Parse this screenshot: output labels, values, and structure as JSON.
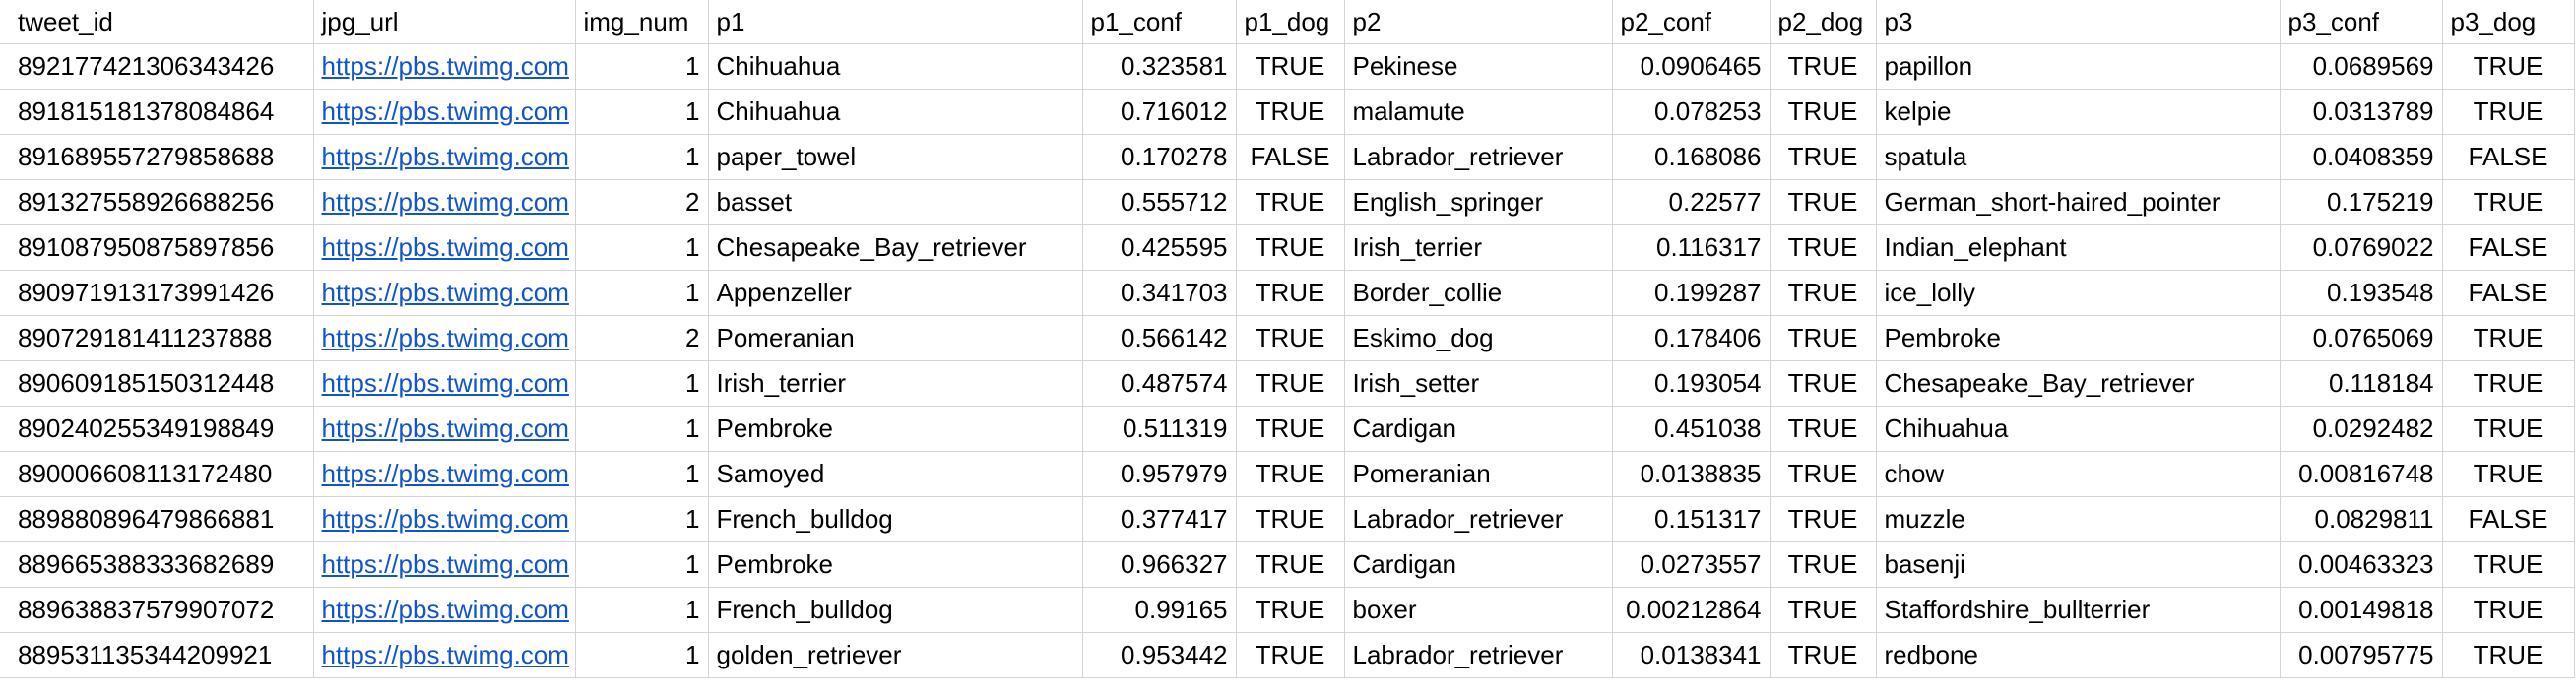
{
  "columns": [
    "tweet_id",
    "jpg_url",
    "img_num",
    "p1",
    "p1_conf",
    "p1_dog",
    "p2",
    "p2_conf",
    "p2_dog",
    "p3",
    "p3_conf",
    "p3_dog"
  ],
  "rows": [
    [
      "892177421306343426",
      "https://pbs.twimg.com",
      "1",
      "Chihuahua",
      "0.323581",
      "TRUE",
      "Pekinese",
      "0.0906465",
      "TRUE",
      "papillon",
      "0.0689569",
      "TRUE"
    ],
    [
      "891815181378084864",
      "https://pbs.twimg.com",
      "1",
      "Chihuahua",
      "0.716012",
      "TRUE",
      "malamute",
      "0.078253",
      "TRUE",
      "kelpie",
      "0.0313789",
      "TRUE"
    ],
    [
      "891689557279858688",
      "https://pbs.twimg.com",
      "1",
      "paper_towel",
      "0.170278",
      "FALSE",
      "Labrador_retriever",
      "0.168086",
      "TRUE",
      "spatula",
      "0.0408359",
      "FALSE"
    ],
    [
      "891327558926688256",
      "https://pbs.twimg.com",
      "2",
      "basset",
      "0.555712",
      "TRUE",
      "English_springer",
      "0.22577",
      "TRUE",
      "German_short-haired_pointer",
      "0.175219",
      "TRUE"
    ],
    [
      "891087950875897856",
      "https://pbs.twimg.com",
      "1",
      "Chesapeake_Bay_retriever",
      "0.425595",
      "TRUE",
      "Irish_terrier",
      "0.116317",
      "TRUE",
      "Indian_elephant",
      "0.0769022",
      "FALSE"
    ],
    [
      "890971913173991426",
      "https://pbs.twimg.com",
      "1",
      "Appenzeller",
      "0.341703",
      "TRUE",
      "Border_collie",
      "0.199287",
      "TRUE",
      "ice_lolly",
      "0.193548",
      "FALSE"
    ],
    [
      "890729181411237888",
      "https://pbs.twimg.com",
      "2",
      "Pomeranian",
      "0.566142",
      "TRUE",
      "Eskimo_dog",
      "0.178406",
      "TRUE",
      "Pembroke",
      "0.0765069",
      "TRUE"
    ],
    [
      "890609185150312448",
      "https://pbs.twimg.com",
      "1",
      "Irish_terrier",
      "0.487574",
      "TRUE",
      "Irish_setter",
      "0.193054",
      "TRUE",
      "Chesapeake_Bay_retriever",
      "0.118184",
      "TRUE"
    ],
    [
      "890240255349198849",
      "https://pbs.twimg.com",
      "1",
      "Pembroke",
      "0.511319",
      "TRUE",
      "Cardigan",
      "0.451038",
      "TRUE",
      "Chihuahua",
      "0.0292482",
      "TRUE"
    ],
    [
      "890006608113172480",
      "https://pbs.twimg.com",
      "1",
      "Samoyed",
      "0.957979",
      "TRUE",
      "Pomeranian",
      "0.0138835",
      "TRUE",
      "chow",
      "0.00816748",
      "TRUE"
    ],
    [
      "889880896479866881",
      "https://pbs.twimg.com",
      "1",
      "French_bulldog",
      "0.377417",
      "TRUE",
      "Labrador_retriever",
      "0.151317",
      "TRUE",
      "muzzle",
      "0.0829811",
      "FALSE"
    ],
    [
      "889665388333682689",
      "https://pbs.twimg.com",
      "1",
      "Pembroke",
      "0.966327",
      "TRUE",
      "Cardigan",
      "0.0273557",
      "TRUE",
      "basenji",
      "0.00463323",
      "TRUE"
    ],
    [
      "889638837579907072",
      "https://pbs.twimg.com",
      "1",
      "French_bulldog",
      "0.99165",
      "TRUE",
      "boxer",
      "0.00212864",
      "TRUE",
      "Staffordshire_bullterrier",
      "0.00149818",
      "TRUE"
    ],
    [
      "889531135344209921",
      "https://pbs.twimg.com",
      "1",
      "golden_retriever",
      "0.953442",
      "TRUE",
      "Labrador_retriever",
      "0.0138341",
      "TRUE",
      "redbone",
      "0.00795775",
      "TRUE"
    ]
  ]
}
